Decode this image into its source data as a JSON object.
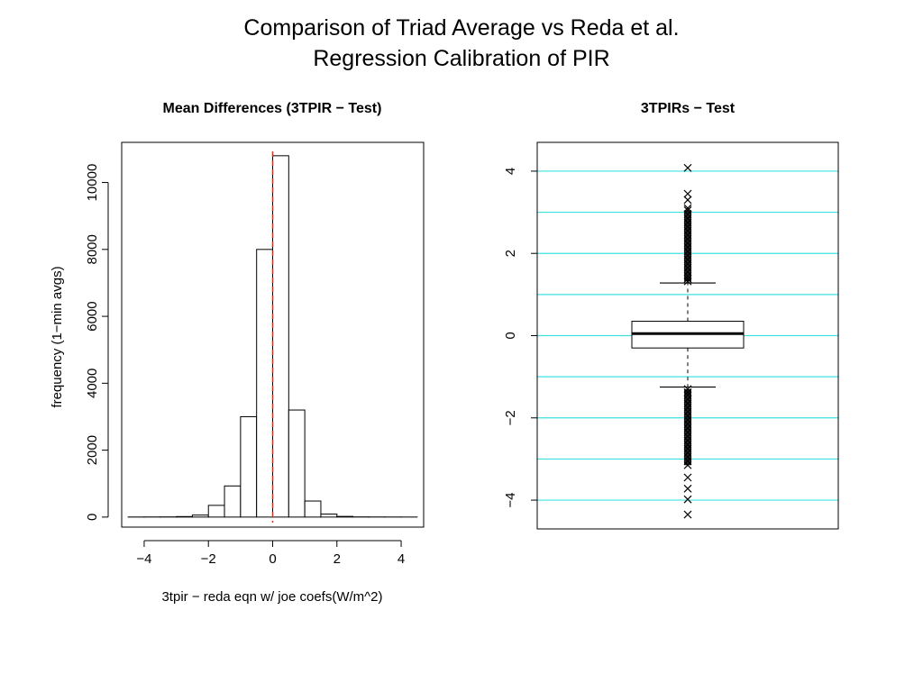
{
  "slide": {
    "title_line1": "Comparison of Triad Average vs Reda et al.",
    "title_line2": "Regression Calibration of PIR"
  },
  "colors": {
    "refline": "#c0392b",
    "gridline": "#3fe0e0",
    "ink": "#000000"
  },
  "chart_data": [
    {
      "type": "bar",
      "title": "Mean Differences (3TPIR − Test)",
      "xlabel": "3tpir − reda eqn w/ joe coefs(W/m^2)",
      "ylabel": "frequency (1−min avgs)",
      "xlim": [
        -4.7,
        4.7
      ],
      "ylim": [
        -300,
        11200
      ],
      "xticks": [
        -4,
        -2,
        0,
        2,
        4
      ],
      "xtick_labels": [
        "−4",
        "−2",
        "0",
        "2",
        "4"
      ],
      "yticks": [
        0,
        2000,
        4000,
        6000,
        8000,
        10000
      ],
      "ytick_labels": [
        "0",
        "2000",
        "4000",
        "6000",
        "8000",
        "10000"
      ],
      "bin_edges": [
        -4.5,
        -4.0,
        -3.5,
        -3.0,
        -2.5,
        -2.0,
        -1.5,
        -1.0,
        -0.5,
        0.0,
        0.5,
        1.0,
        1.5,
        2.0,
        2.5,
        3.0,
        3.5,
        4.0,
        4.5
      ],
      "values": [
        2,
        3,
        5,
        15,
        60,
        350,
        930,
        3000,
        8000,
        10800,
        3200,
        480,
        90,
        20,
        5,
        3,
        2,
        1
      ],
      "reference_line_x": 0,
      "grid": false
    },
    {
      "type": "boxplot",
      "title": "3TPIRs − Test",
      "ylim": [
        -4.7,
        4.7
      ],
      "yticks": [
        -4,
        -2,
        0,
        2,
        4
      ],
      "ytick_labels": [
        "−4",
        "−2",
        "0",
        "2",
        "4"
      ],
      "grid": true,
      "gridlines_y": [
        -4,
        -3,
        -2,
        -1,
        0,
        1,
        2,
        3,
        4
      ],
      "box": {
        "q1": -0.3,
        "median": 0.05,
        "q3": 0.35,
        "whisker_low": -1.25,
        "whisker_high": 1.28
      },
      "outliers": [
        4.08,
        3.45,
        3.3,
        3.1,
        3.05,
        2.95,
        2.85,
        2.75,
        2.65,
        2.55,
        2.45,
        2.35,
        2.25,
        2.15,
        2.05,
        1.95,
        1.85,
        1.75,
        1.65,
        1.55,
        1.45,
        1.38,
        1.32,
        -1.3,
        -1.38,
        -1.45,
        -1.55,
        -1.65,
        -1.75,
        -1.85,
        -1.95,
        -2.05,
        -2.15,
        -2.25,
        -2.35,
        -2.45,
        -2.55,
        -2.65,
        -2.75,
        -2.85,
        -2.95,
        -3.05,
        -3.15,
        -3.45,
        -3.72,
        -3.98,
        -4.35
      ]
    }
  ]
}
